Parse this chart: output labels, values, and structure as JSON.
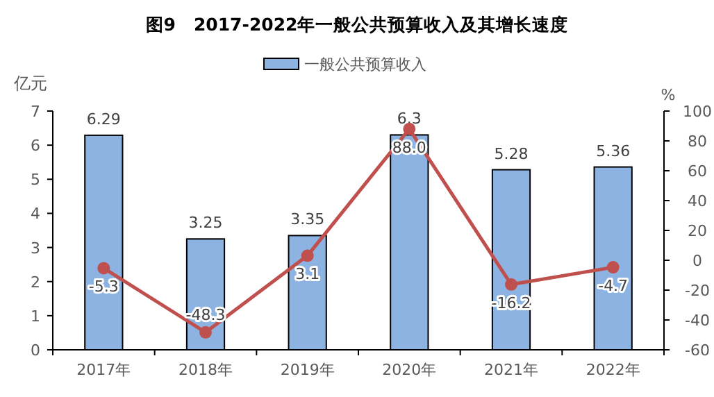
{
  "chart_data": {
    "type": "bar",
    "title": "图9　2017-2022年一般公共预算收入及其增长速度",
    "ylabel": "亿元",
    "y2label": "%",
    "categories": [
      "2017年",
      "2018年",
      "2019年",
      "2020年",
      "2021年",
      "2022年"
    ],
    "series": [
      {
        "name": "一般公共预算收入",
        "color": "#8db3e2",
        "values": [
          6.29,
          3.25,
          3.35,
          6.3,
          5.28,
          5.36
        ],
        "value_labels": [
          "6.29",
          "3.25",
          "3.35",
          "6.3",
          "5.28",
          "5.36"
        ]
      },
      {
        "type": "line",
        "axis": "y2",
        "color": "#c0504d",
        "values": [
          -5.3,
          -48.3,
          3.1,
          88.0,
          -16.2,
          -4.7
        ],
        "value_labels": [
          "-5.3",
          "-48.3",
          "3.1",
          "88.0",
          "-16.2",
          "-4.7"
        ]
      }
    ],
    "ylim": [
      0,
      7
    ],
    "yticks": [
      0,
      1,
      2,
      3,
      4,
      5,
      6,
      7
    ],
    "y2lim": [
      -60,
      100
    ],
    "y2ticks": [
      -60,
      -40,
      -20,
      0,
      20,
      40,
      60,
      80,
      100
    ],
    "marker": "circle",
    "legend": "top"
  }
}
